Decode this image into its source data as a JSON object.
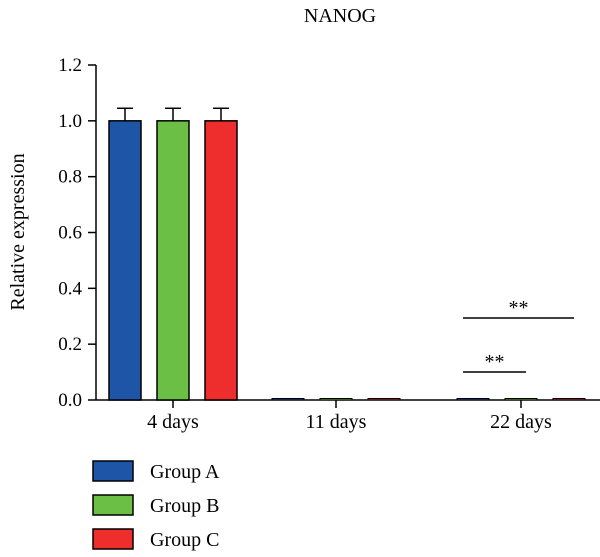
{
  "chart_data": {
    "type": "bar",
    "title": "NANOG",
    "xlabel": "",
    "ylabel": "Relative expression",
    "ylim": [
      0,
      1.2
    ],
    "yticks": [
      "0.0",
      "0.2",
      "0.4",
      "0.6",
      "0.8",
      "1.0",
      "1.2"
    ],
    "categories": [
      "4 days",
      "11 days",
      "22 days"
    ],
    "series": [
      {
        "name": "Group A",
        "color": "#1f55a6",
        "values": [
          1.0,
          0.004,
          0.002
        ],
        "errors": [
          0.045,
          0.0,
          0.0
        ]
      },
      {
        "name": "Group B",
        "color": "#6cbf45",
        "values": [
          1.0,
          0.002,
          0.001
        ],
        "errors": [
          0.045,
          0.0,
          0.0
        ]
      },
      {
        "name": "Group C",
        "color": "#ee2d2d",
        "values": [
          1.0,
          0.003,
          0.002
        ],
        "errors": [
          0.045,
          0.0,
          0.0
        ]
      }
    ],
    "annotations": [
      {
        "text": "**",
        "category": "22 days",
        "from_series": 0,
        "to_series": 1
      },
      {
        "text": "**",
        "category": "22 days",
        "from_series": 0,
        "to_series": 2
      }
    ],
    "legend_position": "bottom-left",
    "grid": false
  }
}
